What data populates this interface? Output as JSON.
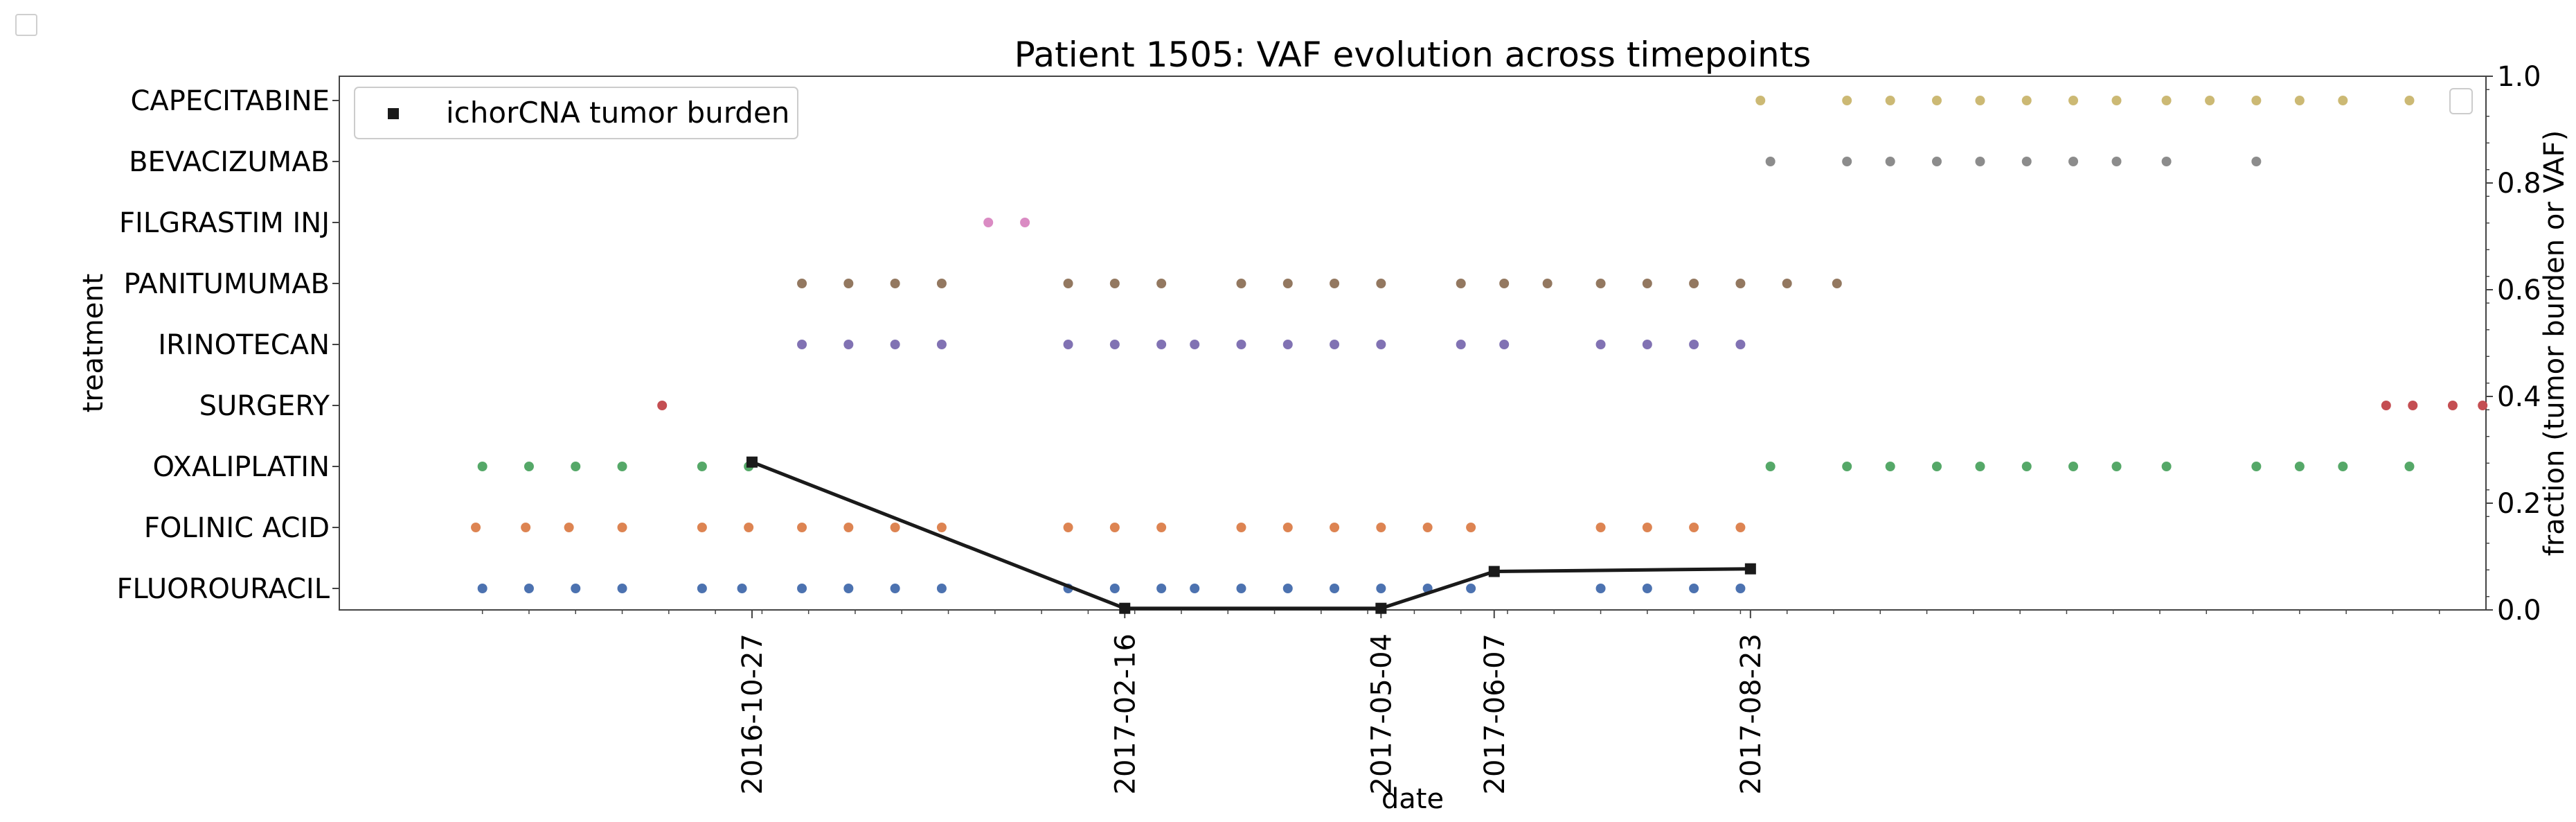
{
  "chart_data": {
    "type": "scatter",
    "title": "Patient 1505: VAF evolution across timepoints",
    "xlabel": "date",
    "ylabel": "treatment",
    "y2label": "fraction (tumor burden or VAF)",
    "y2lim": [
      0.0,
      1.0
    ],
    "y2ticks": [
      "0.0",
      "0.2",
      "0.4",
      "0.6",
      "0.8",
      "1.0"
    ],
    "xlim": [
      "2016-06-25",
      "2018-04-01"
    ],
    "xticks": [
      "2016-10-27",
      "2017-02-16",
      "2017-05-04",
      "2017-06-07",
      "2017-08-23"
    ],
    "legend": {
      "position": "top-left",
      "entries": [
        "ichorCNA tumor burden"
      ]
    },
    "categories": [
      "FLUOROURACIL",
      "FOLINIC ACID",
      "OXALIPLATIN",
      "SURGERY",
      "IRINOTECAN",
      "PANITUMUMAB",
      "FILGRASTIM INJ",
      "BEVACIZUMAB",
      "CAPECITABINE"
    ],
    "series": [
      {
        "category": "FLUOROURACIL",
        "color": "#4c72b0",
        "dates": [
          "2016-08-07",
          "2016-08-21",
          "2016-09-04",
          "2016-09-18",
          "2016-10-12",
          "2016-10-24",
          "2016-11-11",
          "2016-11-25",
          "2016-12-09",
          "2016-12-23",
          "2017-01-30",
          "2017-02-13",
          "2017-02-27",
          "2017-03-09",
          "2017-03-23",
          "2017-04-06",
          "2017-04-20",
          "2017-05-04",
          "2017-05-18",
          "2017-05-31",
          "2017-07-09",
          "2017-07-23",
          "2017-08-06",
          "2017-08-20"
        ]
      },
      {
        "category": "FOLINIC ACID",
        "color": "#dd8452",
        "dates": [
          "2016-08-05",
          "2016-08-20",
          "2016-09-02",
          "2016-09-18",
          "2016-10-12",
          "2016-10-26",
          "2016-11-11",
          "2016-11-25",
          "2016-12-09",
          "2016-12-23",
          "2017-01-30",
          "2017-02-13",
          "2017-02-27",
          "2017-03-23",
          "2017-04-06",
          "2017-04-20",
          "2017-05-04",
          "2017-05-18",
          "2017-05-31",
          "2017-07-09",
          "2017-07-23",
          "2017-08-06",
          "2017-08-20"
        ]
      },
      {
        "category": "OXALIPLATIN",
        "color": "#55a868",
        "dates": [
          "2016-08-07",
          "2016-08-21",
          "2016-09-04",
          "2016-09-18",
          "2016-10-12",
          "2016-10-26",
          "2017-08-29",
          "2017-09-21",
          "2017-10-04",
          "2017-10-18",
          "2017-10-31",
          "2017-11-14",
          "2017-11-28",
          "2017-12-11",
          "2017-12-26",
          "2018-01-22",
          "2018-02-04",
          "2018-02-17",
          "2018-03-09"
        ]
      },
      {
        "category": "SURGERY",
        "color": "#c44e52",
        "dates": [
          "2016-09-30",
          "2018-02-30",
          "2018-03-10",
          "2018-03-22",
          "2018-03-31"
        ]
      },
      {
        "category": "IRINOTECAN",
        "color": "#8172b3",
        "dates": [
          "2016-11-11",
          "2016-11-25",
          "2016-12-09",
          "2016-12-23",
          "2017-01-30",
          "2017-02-13",
          "2017-02-27",
          "2017-03-09",
          "2017-03-23",
          "2017-04-06",
          "2017-04-20",
          "2017-05-04",
          "2017-05-28",
          "2017-06-10",
          "2017-07-09",
          "2017-07-23",
          "2017-08-06",
          "2017-08-20"
        ]
      },
      {
        "category": "PANITUMUMAB",
        "color": "#937860",
        "dates": [
          "2016-11-11",
          "2016-11-25",
          "2016-12-09",
          "2016-12-23",
          "2017-01-30",
          "2017-02-13",
          "2017-02-27",
          "2017-03-23",
          "2017-04-06",
          "2017-04-20",
          "2017-05-04",
          "2017-05-28",
          "2017-06-10",
          "2017-06-23",
          "2017-07-09",
          "2017-07-23",
          "2017-08-06",
          "2017-08-20",
          "2017-09-03",
          "2017-09-18"
        ]
      },
      {
        "category": "FILGRASTIM INJ",
        "color": "#da8bc3",
        "dates": [
          "2017-01-06",
          "2017-01-17"
        ]
      },
      {
        "category": "BEVACIZUMAB",
        "color": "#8c8c8c",
        "dates": [
          "2017-08-29",
          "2017-09-21",
          "2017-10-04",
          "2017-10-18",
          "2017-10-31",
          "2017-11-14",
          "2017-11-28",
          "2017-12-11",
          "2017-12-26",
          "2018-01-22"
        ]
      },
      {
        "category": "CAPECITABINE",
        "color": "#ccb974",
        "dates": [
          "2017-08-26",
          "2017-09-21",
          "2017-10-04",
          "2017-10-18",
          "2017-10-31",
          "2017-11-14",
          "2017-11-28",
          "2017-12-11",
          "2017-12-26",
          "2018-01-08",
          "2018-01-22",
          "2018-02-04",
          "2018-02-17",
          "2018-03-09"
        ]
      }
    ],
    "tumor_burden": {
      "name": "ichorCNA tumor burden",
      "color": "#1a1a1a",
      "x": [
        "2016-10-27",
        "2017-02-16",
        "2017-05-04",
        "2017-06-07",
        "2017-08-23"
      ],
      "y": [
        0.277,
        0.003,
        0.003,
        0.072,
        0.077
      ]
    }
  }
}
